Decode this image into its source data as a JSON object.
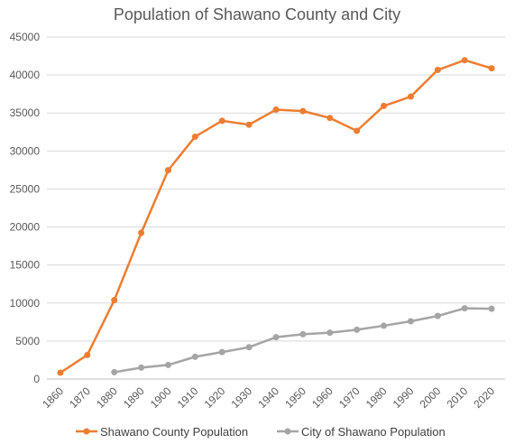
{
  "chart_data": {
    "type": "line",
    "title": "Population of Shawano County and City",
    "categories": [
      "1860",
      "1870",
      "1880",
      "1890",
      "1900",
      "1910",
      "1920",
      "1930",
      "1940",
      "1950",
      "1960",
      "1970",
      "1980",
      "1990",
      "2000",
      "2010",
      "2020"
    ],
    "ylim": [
      0,
      45000
    ],
    "yticks": [
      0,
      5000,
      10000,
      15000,
      20000,
      25000,
      30000,
      35000,
      40000,
      45000
    ],
    "grid": true,
    "legend": "bottom",
    "series": [
      {
        "name": "Shawano County Population",
        "color": "#ED7D31",
        "values": [
          829,
          3166,
          10371,
          19236,
          27475,
          31884,
          33975,
          33460,
          35436,
          35249,
          34351,
          32650,
          35928,
          37157,
          40664,
          41949,
          40881
        ]
      },
      {
        "name": "City of Shawano Population",
        "color": "#A5A5A5",
        "values": [
          null,
          null,
          900,
          1500,
          1850,
          2923,
          3544,
          4188,
          5500,
          5894,
          6103,
          6488,
          7013,
          7598,
          8298,
          9305,
          9243
        ]
      }
    ]
  }
}
